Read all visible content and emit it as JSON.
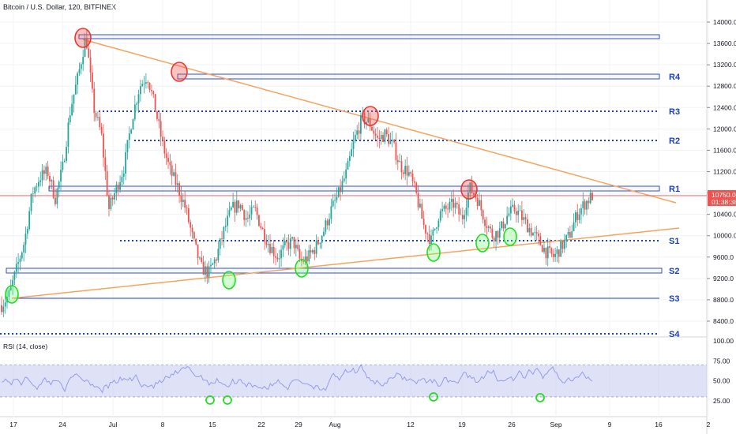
{
  "title": "Bitcoin / U.S. Dollar, 120, BITFINEX",
  "colors": {
    "up": "#26a69a",
    "down": "#ef5350",
    "resistance": "#1b3fbf",
    "trendline": "#f7a35c",
    "current_line": "#ef5350",
    "rsi_band": "#c5c8f0",
    "rsi_line": "#8e96e8"
  },
  "price_badge": {
    "price": "10750.0",
    "countdown": "01:38:38"
  },
  "chart_data": {
    "type": "candlestick",
    "price_axis": {
      "ticks": [
        "14000.0",
        "13600.0",
        "13200.0",
        "12800.0",
        "12400.0",
        "12000.0",
        "11600.0",
        "11200.0",
        "10800.0",
        "10400.0",
        "10000.0",
        "9600.0",
        "9200.0",
        "8800.0",
        "8400.0"
      ],
      "ylim": [
        8100,
        14200
      ]
    },
    "time_axis": {
      "ticks": [
        "17",
        "24",
        "Jul",
        "8",
        "15",
        "22",
        "29",
        "Aug",
        "12",
        "19",
        "26",
        "Sep",
        "9",
        "16",
        "2"
      ]
    },
    "price_path": [
      8700,
      8900,
      9400,
      9900,
      10800,
      11100,
      11200,
      10700,
      11300,
      12400,
      13000,
      13750,
      12400,
      11900,
      10500,
      10900,
      11300,
      12200,
      12800,
      13000,
      12400,
      11700,
      11200,
      10900,
      10500,
      9900,
      9400,
      9300,
      9600,
      10100,
      10500,
      10600,
      10300,
      10500,
      10100,
      9800,
      9600,
      9800,
      9900,
      9500,
      9600,
      9800,
      10100,
      10500,
      10800,
      11200,
      11800,
      12200,
      12100,
      11800,
      11900,
      11700,
      11300,
      11200,
      10800,
      10200,
      9900,
      10400,
      10500,
      10600,
      10300,
      10900,
      10700,
      10300,
      10000,
      10100,
      10400,
      10500,
      10300,
      10100,
      9900,
      9700,
      9600,
      9800,
      10000,
      10400,
      10600,
      10750
    ]
  },
  "levels": [
    {
      "label": "R4"
    },
    {
      "label": "R3"
    },
    {
      "label": "R2"
    },
    {
      "label": "R1"
    },
    {
      "label": "S1"
    },
    {
      "label": "S2"
    },
    {
      "label": "S3"
    },
    {
      "label": "S4"
    }
  ],
  "rsi": {
    "title": "RSI (14, close)",
    "ticks": [
      "100.00",
      "75.00",
      "50.00",
      "25.00"
    ],
    "upper": 70,
    "lower": 30
  }
}
